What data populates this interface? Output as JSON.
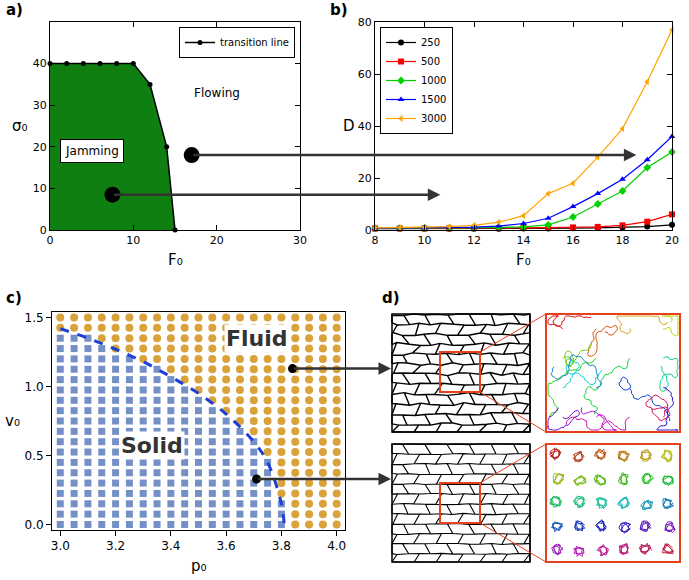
{
  "chart_data": [
    {
      "panel": "a)",
      "type": "area",
      "x_label": "F₀",
      "y_label": "σ₀",
      "xlim": [
        0,
        30
      ],
      "xticks": [
        0,
        10,
        20,
        30
      ],
      "ylim": [
        0,
        50
      ],
      "yticks": [
        0,
        10,
        20,
        30,
        40
      ],
      "color": "#0f7f12",
      "legend": "upper right",
      "series": [
        {
          "name": "transition line",
          "color": "#000000",
          "marker": "circle",
          "line_style": "solid",
          "x": [
            0,
            2,
            4,
            6,
            8,
            10,
            12,
            14,
            15
          ],
          "values": [
            40,
            40,
            40,
            40,
            40,
            40,
            35,
            20,
            0
          ]
        }
      ],
      "annotations": [
        {
          "text": "Jamming",
          "x": 5,
          "y": 19
        },
        {
          "text": "Flowing",
          "x": 20,
          "y": 33
        }
      ],
      "points": {
        "x": [
          7.5,
          17
        ],
        "y": [
          8.5,
          18
        ],
        "color": "#000000"
      }
    },
    {
      "panel": "b)",
      "type": "line",
      "x_label": "F₀",
      "y_label": "D",
      "xlim": [
        8,
        20
      ],
      "xticks": [
        8,
        10,
        12,
        14,
        16,
        18,
        20
      ],
      "ylim": [
        0,
        80
      ],
      "yticks": [
        0,
        20,
        40,
        60,
        80
      ],
      "legend": "upper left",
      "x": [
        8,
        9,
        10,
        11,
        12,
        13,
        14,
        15,
        16,
        17,
        18,
        19,
        20
      ],
      "series": [
        {
          "name": "250",
          "color": "#000000",
          "marker": "circle",
          "line_style": "solid",
          "values": [
            0.5,
            0.5,
            0.5,
            0.5,
            0.5,
            0.5,
            0.6,
            0.6,
            0.7,
            0.8,
            1.0,
            1.3,
            2
          ]
        },
        {
          "name": "500",
          "color": "#ff0000",
          "marker": "square",
          "line_style": "solid",
          "values": [
            0.6,
            0.6,
            0.6,
            0.6,
            0.7,
            0.7,
            0.8,
            0.9,
            1.0,
            1.2,
            1.8,
            3.2,
            6
          ]
        },
        {
          "name": "1000",
          "color": "#00d000",
          "marker": "diamond",
          "line_style": "solid",
          "values": [
            0.7,
            0.7,
            0.8,
            0.8,
            0.9,
            1.0,
            1.2,
            2.0,
            5,
            10,
            15,
            24,
            30
          ]
        },
        {
          "name": "1500",
          "color": "#0000ff",
          "marker": "triangle-up",
          "line_style": "solid",
          "values": [
            0.7,
            0.8,
            0.9,
            1.0,
            1.1,
            1.5,
            2.5,
            4.5,
            9,
            14,
            19.5,
            27,
            36
          ]
        },
        {
          "name": "3000",
          "color": "#ffa500",
          "marker": "triangle-left",
          "line_style": "solid",
          "values": [
            0.8,
            0.9,
            1.0,
            1.3,
            1.8,
            3,
            5.5,
            14,
            18,
            28,
            39,
            57,
            77
          ]
        }
      ]
    },
    {
      "panel": "c)",
      "type": "grid_scatter",
      "x_label": "p₀",
      "y_label": "v₀",
      "xlim": [
        2.97,
        4.03
      ],
      "xticks": [
        {
          "value": 3,
          "label": "3.0"
        },
        3.2,
        3.4,
        3.6,
        3.8,
        {
          "value": 4,
          "label": "4.0"
        }
      ],
      "ylim": [
        -0.04,
        1.54
      ],
      "yticks": [
        {
          "value": 0,
          "label": "0.0"
        },
        0.5,
        {
          "value": 1,
          "label": "1.0"
        },
        1.5
      ],
      "x": [
        3,
        3.05,
        3.1,
        3.15,
        3.2,
        3.25,
        3.3,
        3.35,
        3.4,
        3.45,
        3.5,
        3.55,
        3.6,
        3.65,
        3.7,
        3.75,
        3.8,
        3.85,
        3.9,
        3.95,
        4
      ],
      "y": [
        0,
        0.075,
        0.15,
        0.225,
        0.3,
        0.375,
        0.45,
        0.525,
        0.6,
        0.675,
        0.75,
        0.825,
        0.9,
        0.975,
        1.05,
        1.125,
        1.2,
        1.275,
        1.35,
        1.425,
        1.5
      ],
      "cells": [
        [
          0,
          0,
          0,
          0,
          0,
          0,
          0,
          0,
          0,
          0,
          0,
          0,
          0,
          0,
          0,
          0,
          0,
          1,
          1,
          1,
          1
        ],
        [
          0,
          0,
          0,
          0,
          0,
          0,
          0,
          0,
          0,
          0,
          0,
          0,
          0,
          0,
          0,
          0,
          0,
          1,
          1,
          1,
          1
        ],
        [
          0,
          0,
          0,
          0,
          0,
          0,
          0,
          0,
          0,
          0,
          0,
          0,
          0,
          0,
          0,
          0,
          0,
          1,
          1,
          1,
          1
        ],
        [
          0,
          0,
          0,
          0,
          0,
          0,
          0,
          0,
          0,
          0,
          0,
          0,
          0,
          0,
          0,
          0,
          1,
          1,
          1,
          1,
          1
        ],
        [
          0,
          0,
          0,
          0,
          0,
          0,
          0,
          0,
          0,
          0,
          0,
          0,
          0,
          0,
          0,
          0,
          1,
          1,
          1,
          1,
          1
        ],
        [
          0,
          0,
          0,
          0,
          0,
          0,
          0,
          0,
          0,
          0,
          0,
          0,
          0,
          0,
          0,
          0,
          1,
          1,
          1,
          1,
          1
        ],
        [
          0,
          0,
          0,
          0,
          0,
          0,
          0,
          0,
          0,
          0,
          0,
          0,
          0,
          0,
          0,
          0,
          1,
          1,
          1,
          1,
          1
        ],
        [
          0,
          0,
          0,
          0,
          0,
          0,
          0,
          0,
          0,
          0,
          0,
          0,
          0,
          0,
          0,
          1,
          1,
          1,
          1,
          1,
          1
        ],
        [
          0,
          0,
          0,
          0,
          0,
          0,
          0,
          0,
          0,
          0,
          0,
          0,
          0,
          0,
          0,
          1,
          1,
          1,
          1,
          1,
          1
        ],
        [
          0,
          0,
          0,
          0,
          0,
          0,
          0,
          0,
          0,
          0,
          0,
          0,
          0,
          0,
          1,
          1,
          1,
          1,
          1,
          1,
          1
        ],
        [
          0,
          0,
          0,
          0,
          0,
          0,
          0,
          0,
          0,
          0,
          0,
          0,
          0,
          1,
          1,
          1,
          1,
          1,
          1,
          1,
          1
        ],
        [
          0,
          0,
          0,
          0,
          0,
          0,
          0,
          0,
          0,
          0,
          0,
          0,
          1,
          1,
          1,
          1,
          1,
          1,
          1,
          1,
          1
        ],
        [
          0,
          0,
          0,
          0,
          0,
          0,
          0,
          0,
          0,
          0,
          0,
          1,
          1,
          1,
          1,
          1,
          1,
          1,
          1,
          1,
          1
        ],
        [
          0,
          0,
          0,
          0,
          0,
          0,
          0,
          0,
          0,
          0,
          1,
          1,
          1,
          1,
          1,
          1,
          1,
          1,
          1,
          1,
          1
        ],
        [
          0,
          0,
          0,
          0,
          0,
          0,
          0,
          0,
          0,
          1,
          1,
          1,
          1,
          1,
          1,
          1,
          1,
          1,
          1,
          1,
          1
        ],
        [
          0,
          0,
          0,
          0,
          0,
          0,
          0,
          0,
          1,
          1,
          1,
          1,
          1,
          1,
          1,
          1,
          1,
          1,
          1,
          1,
          1
        ],
        [
          0,
          0,
          0,
          0,
          0,
          0,
          1,
          1,
          1,
          1,
          1,
          1,
          1,
          1,
          1,
          1,
          1,
          1,
          1,
          1,
          1
        ],
        [
          0,
          0,
          0,
          0,
          1,
          1,
          1,
          1,
          1,
          1,
          1,
          1,
          1,
          1,
          1,
          1,
          1,
          1,
          1,
          1,
          1
        ],
        [
          0,
          0,
          0,
          1,
          1,
          1,
          1,
          1,
          1,
          1,
          1,
          1,
          1,
          1,
          1,
          1,
          1,
          1,
          1,
          1,
          1
        ],
        [
          1,
          1,
          1,
          1,
          1,
          1,
          1,
          1,
          1,
          1,
          1,
          1,
          1,
          1,
          1,
          1,
          1,
          1,
          1,
          1,
          1
        ],
        [
          1,
          1,
          1,
          1,
          1,
          1,
          1,
          1,
          1,
          1,
          1,
          1,
          1,
          1,
          1,
          1,
          1,
          1,
          1,
          1,
          1
        ]
      ],
      "phases": [
        {
          "color": "#7490c6",
          "marker": "square"
        },
        {
          "color": "#d9a23a",
          "marker": "circle"
        }
      ],
      "boundary": {
        "x": [
          3.0,
          3.1,
          3.2,
          3.3,
          3.4,
          3.5,
          3.6,
          3.7,
          3.75,
          3.8,
          3.81
        ],
        "y": [
          1.42,
          1.35,
          1.27,
          1.18,
          1.07,
          0.95,
          0.8,
          0.6,
          0.45,
          0.15,
          0.0
        ],
        "color": "#1d3fd9",
        "line_style": "dashed"
      },
      "annotations": [
        {
          "text": "Fluid",
          "x": 3.71,
          "y": 1.35
        },
        {
          "text": "Solid",
          "x": 3.33,
          "y": 0.57
        }
      ],
      "points": {
        "x": [
          3.84,
          3.71
        ],
        "y": [
          1.13,
          0.33
        ],
        "color": "#000000"
      }
    },
    {
      "panel": "d)",
      "type": "diagram"
    }
  ]
}
